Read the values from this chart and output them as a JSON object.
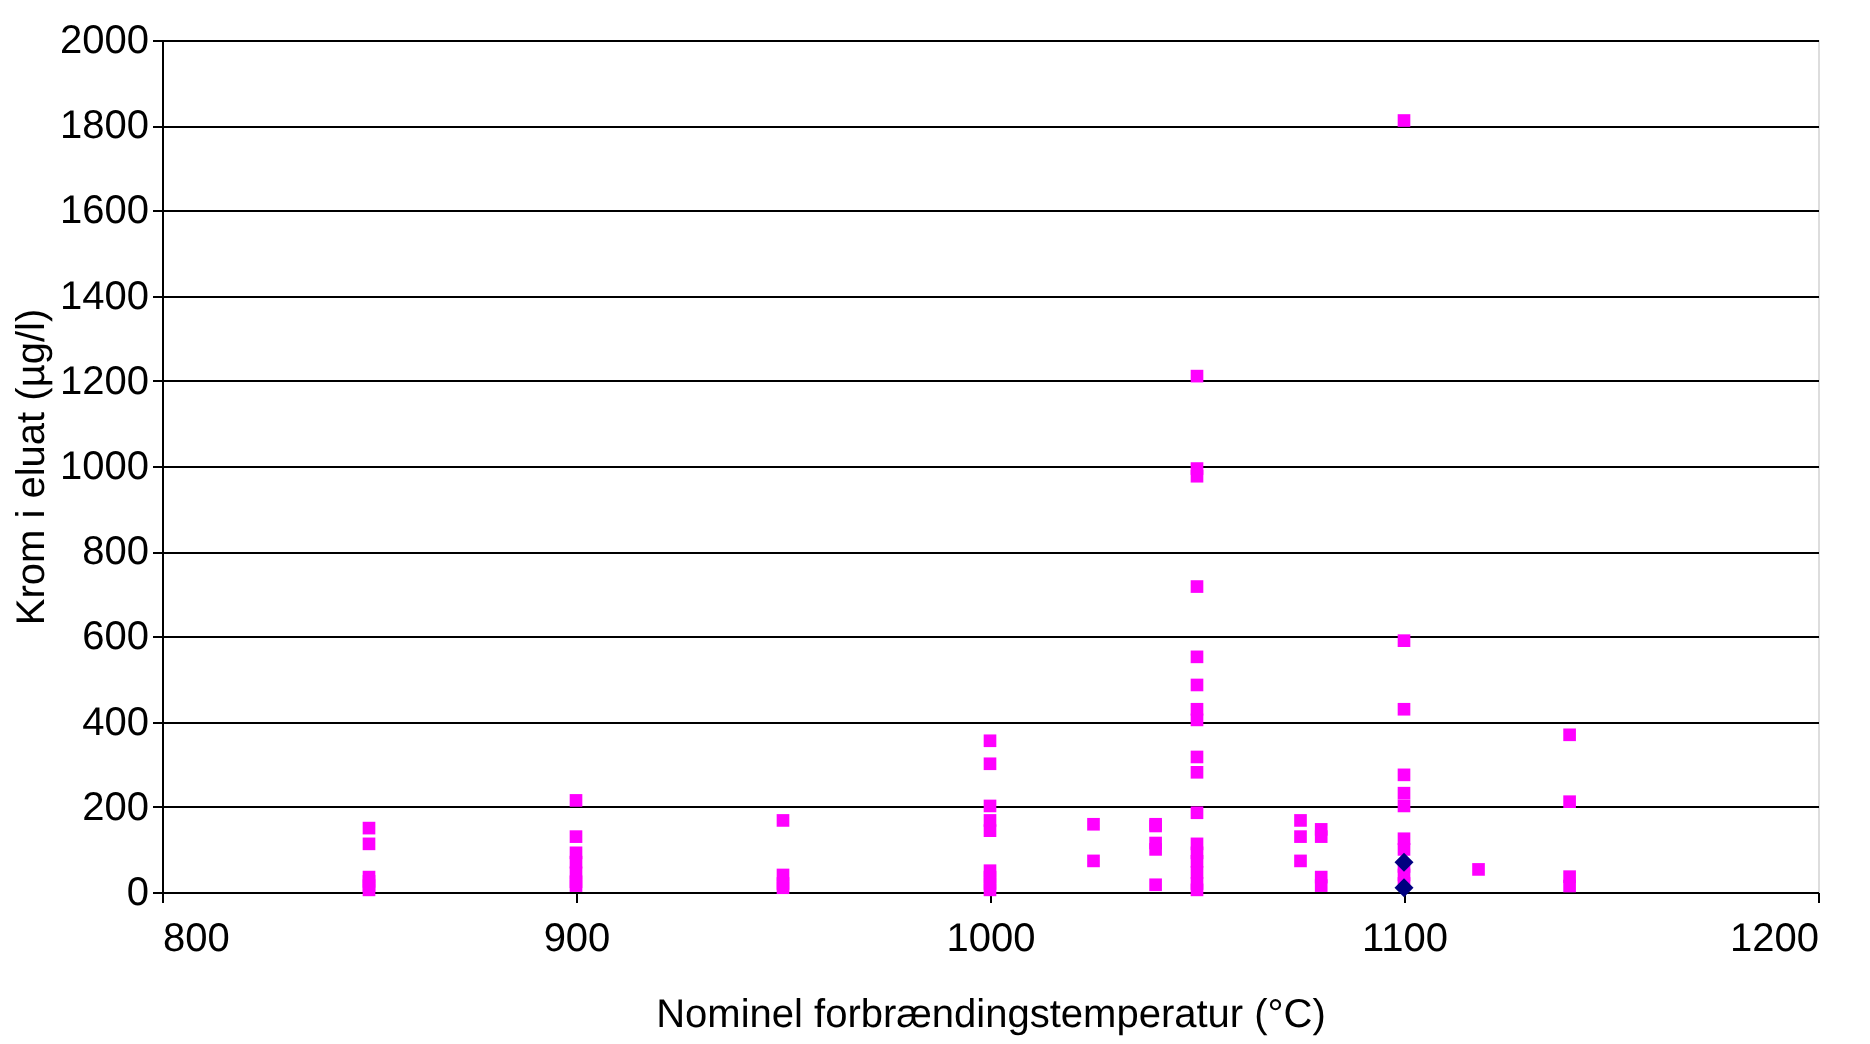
{
  "chart_data": {
    "type": "scatter",
    "xlabel": "Nominel forbrændingstemperatur (°C)",
    "ylabel": "Krom i eluat (µg/l)",
    "xlim": [
      800,
      1200
    ],
    "xticks": [
      800,
      900,
      1000,
      1100,
      1200
    ],
    "ylim": [
      0,
      2000
    ],
    "yticks": [
      0,
      200,
      400,
      600,
      800,
      1000,
      1200,
      1400,
      1600,
      1800,
      2000
    ],
    "grid": "y",
    "legend": false,
    "series": [
      {
        "color": "#ff00ff",
        "marker": "square",
        "x": [
          850,
          850,
          850,
          850,
          850,
          850,
          900,
          900,
          900,
          900,
          900,
          900,
          900,
          950,
          950,
          950,
          950,
          1000,
          1000,
          1000,
          1000,
          1000,
          1000,
          1000,
          1000,
          1000,
          1025,
          1025,
          1040,
          1040,
          1040,
          1040,
          1040,
          1050,
          1050,
          1050,
          1050,
          1050,
          1050,
          1050,
          1050,
          1050,
          1050,
          1050,
          1050,
          1050,
          1050,
          1050,
          1050,
          1050,
          1075,
          1075,
          1075,
          1080,
          1080,
          1080,
          1080,
          1100,
          1100,
          1100,
          1100,
          1100,
          1100,
          1100,
          1100,
          1100,
          1100,
          1100,
          1118,
          1140,
          1140,
          1140,
          1140
        ],
        "values": [
          150,
          113,
          35,
          25,
          15,
          5,
          215,
          130,
          92,
          70,
          45,
          24,
          15,
          168,
          40,
          20,
          10,
          355,
          301,
          202,
          168,
          144,
          50,
          35,
          20,
          5,
          159,
          73,
          159,
          115,
          100,
          17,
          155,
          1211,
          994,
          976,
          717,
          552,
          486,
          429,
          404,
          317,
          281,
          186,
          113,
          92,
          72,
          46,
          20,
          5,
          168,
          130,
          73,
          147,
          130,
          35,
          15,
          1811,
          590,
          429,
          275,
          232,
          202,
          125,
          100,
          60,
          40,
          20,
          53,
          369,
          212,
          36,
          14
        ]
      },
      {
        "color": "#000080",
        "marker": "diamond",
        "x": [
          1100,
          1100
        ],
        "values": [
          70,
          10
        ]
      }
    ]
  }
}
